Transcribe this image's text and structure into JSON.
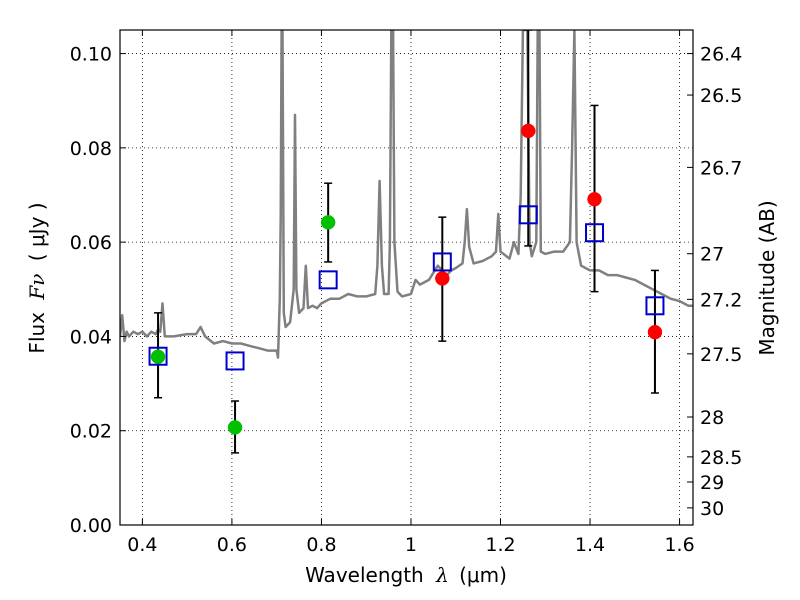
{
  "chart_data": {
    "type": "scatter",
    "xlabel": {
      "prefix": "Wavelength",
      "symbol": "λ",
      "unit": "(μm)"
    },
    "ylabel": {
      "prefix": "Flux",
      "symbol": "Fν",
      "unit": "( μJy )"
    },
    "y2label": "Magnitude (AB)",
    "xlim": [
      0.35,
      1.63
    ],
    "ylim": [
      0.0,
      0.105
    ],
    "grid": true,
    "x_ticks": [
      {
        "value": 0.4,
        "label": "0.4"
      },
      {
        "value": 0.6,
        "label": "0.6"
      },
      {
        "value": 0.8,
        "label": "0.8"
      },
      {
        "value": 1.0,
        "label": "1"
      },
      {
        "value": 1.2,
        "label": "1.2"
      },
      {
        "value": 1.4,
        "label": "1.4"
      },
      {
        "value": 1.6,
        "label": "1.6"
      }
    ],
    "y_ticks": [
      {
        "value": 0.0,
        "label": "0.00"
      },
      {
        "value": 0.02,
        "label": "0.02"
      },
      {
        "value": 0.04,
        "label": "0.04"
      },
      {
        "value": 0.06,
        "label": "0.06"
      },
      {
        "value": 0.08,
        "label": "0.08"
      },
      {
        "value": 0.1,
        "label": "0.10"
      }
    ],
    "y2_ticks": [
      {
        "value": 26.4,
        "label": "26.4"
      },
      {
        "value": 26.5,
        "label": "26.5"
      },
      {
        "value": 26.7,
        "label": "26.7"
      },
      {
        "value": 27.0,
        "label": "27"
      },
      {
        "value": 27.2,
        "label": "27.2"
      },
      {
        "value": 27.5,
        "label": "27.5"
      },
      {
        "value": 28.0,
        "label": "28"
      },
      {
        "value": 28.5,
        "label": "28.5"
      },
      {
        "value": 29.0,
        "label": "29"
      },
      {
        "value": 30.0,
        "label": "30"
      }
    ],
    "model_spectrum": {
      "color": "#808080",
      "points": [
        [
          0.35,
          0.04
        ],
        [
          0.355,
          0.0445
        ],
        [
          0.36,
          0.039
        ],
        [
          0.365,
          0.041
        ],
        [
          0.37,
          0.04
        ],
        [
          0.38,
          0.041
        ],
        [
          0.39,
          0.0405
        ],
        [
          0.4,
          0.041
        ],
        [
          0.41,
          0.04
        ],
        [
          0.42,
          0.041
        ],
        [
          0.43,
          0.0405
        ],
        [
          0.435,
          0.0415
        ],
        [
          0.44,
          0.041
        ],
        [
          0.445,
          0.047
        ],
        [
          0.45,
          0.04
        ],
        [
          0.47,
          0.04
        ],
        [
          0.5,
          0.0405
        ],
        [
          0.52,
          0.0405
        ],
        [
          0.53,
          0.042
        ],
        [
          0.54,
          0.04
        ],
        [
          0.56,
          0.0385
        ],
        [
          0.58,
          0.039
        ],
        [
          0.6,
          0.0385
        ],
        [
          0.62,
          0.0385
        ],
        [
          0.64,
          0.038
        ],
        [
          0.66,
          0.0375
        ],
        [
          0.68,
          0.037
        ],
        [
          0.7,
          0.037
        ],
        [
          0.703,
          0.0355
        ],
        [
          0.707,
          0.048
        ],
        [
          0.709,
          0.065
        ],
        [
          0.711,
          0.105
        ],
        [
          0.713,
          0.105
        ],
        [
          0.716,
          0.045
        ],
        [
          0.72,
          0.042
        ],
        [
          0.73,
          0.043
        ],
        [
          0.738,
          0.05
        ],
        [
          0.741,
          0.087
        ],
        [
          0.744,
          0.05
        ],
        [
          0.75,
          0.045
        ],
        [
          0.76,
          0.046
        ],
        [
          0.765,
          0.055
        ],
        [
          0.77,
          0.046
        ],
        [
          0.78,
          0.0465
        ],
        [
          0.79,
          0.046
        ],
        [
          0.8,
          0.047
        ],
        [
          0.82,
          0.048
        ],
        [
          0.84,
          0.048
        ],
        [
          0.86,
          0.049
        ],
        [
          0.88,
          0.0485
        ],
        [
          0.9,
          0.0485
        ],
        [
          0.92,
          0.049
        ],
        [
          0.925,
          0.055
        ],
        [
          0.93,
          0.073
        ],
        [
          0.935,
          0.055
        ],
        [
          0.94,
          0.049
        ],
        [
          0.95,
          0.049
        ],
        [
          0.953,
          0.06
        ],
        [
          0.956,
          0.105
        ],
        [
          0.96,
          0.105
        ],
        [
          0.963,
          0.06
        ],
        [
          0.97,
          0.0495
        ],
        [
          0.98,
          0.0485
        ],
        [
          1.0,
          0.049
        ],
        [
          1.01,
          0.052
        ],
        [
          1.02,
          0.051
        ],
        [
          1.04,
          0.052
        ],
        [
          1.06,
          0.055
        ],
        [
          1.08,
          0.053
        ],
        [
          1.09,
          0.054
        ],
        [
          1.1,
          0.0545
        ],
        [
          1.115,
          0.0555
        ],
        [
          1.12,
          0.06
        ],
        [
          1.125,
          0.067
        ],
        [
          1.13,
          0.059
        ],
        [
          1.14,
          0.0555
        ],
        [
          1.16,
          0.056
        ],
        [
          1.18,
          0.057
        ],
        [
          1.19,
          0.058
        ],
        [
          1.195,
          0.066
        ],
        [
          1.2,
          0.058
        ],
        [
          1.22,
          0.0565
        ],
        [
          1.23,
          0.06
        ],
        [
          1.24,
          0.0575
        ],
        [
          1.245,
          0.07
        ],
        [
          1.25,
          0.105
        ],
        [
          1.26,
          0.105
        ],
        [
          1.265,
          0.06
        ],
        [
          1.27,
          0.057
        ],
        [
          1.28,
          0.06
        ],
        [
          1.283,
          0.105
        ],
        [
          1.287,
          0.105
        ],
        [
          1.29,
          0.058
        ],
        [
          1.3,
          0.0575
        ],
        [
          1.32,
          0.058
        ],
        [
          1.34,
          0.058
        ],
        [
          1.355,
          0.06
        ],
        [
          1.36,
          0.08
        ],
        [
          1.365,
          0.105
        ],
        [
          1.37,
          0.06
        ],
        [
          1.38,
          0.055
        ],
        [
          1.4,
          0.054
        ],
        [
          1.42,
          0.054
        ],
        [
          1.44,
          0.053
        ],
        [
          1.46,
          0.053
        ],
        [
          1.48,
          0.0525
        ],
        [
          1.5,
          0.052
        ],
        [
          1.52,
          0.051
        ],
        [
          1.54,
          0.05
        ],
        [
          1.56,
          0.049
        ],
        [
          1.58,
          0.048
        ],
        [
          1.6,
          0.0475
        ],
        [
          1.62,
          0.0465
        ],
        [
          1.63,
          0.0465
        ]
      ]
    },
    "series": [
      {
        "marker": "circle",
        "color": "#00c000",
        "points": [
          {
            "x": 0.435,
            "y": 0.0357,
            "err_low": 0.027,
            "err_high": 0.045
          },
          {
            "x": 0.607,
            "y": 0.0207,
            "err_low": 0.0153,
            "err_high": 0.0263
          },
          {
            "x": 0.815,
            "y": 0.0642,
            "err_low": 0.0558,
            "err_high": 0.0725
          }
        ]
      },
      {
        "marker": "circle",
        "color": "#ff0000",
        "points": [
          {
            "x": 1.07,
            "y": 0.0523,
            "err_low": 0.039,
            "err_high": 0.0653
          },
          {
            "x": 1.262,
            "y": 0.0836,
            "err_low": 0.0592,
            "err_high": 0.105
          },
          {
            "x": 1.41,
            "y": 0.0691,
            "err_low": 0.0495,
            "err_high": 0.089
          },
          {
            "x": 1.545,
            "y": 0.0409,
            "err_low": 0.028,
            "err_high": 0.054
          }
        ]
      },
      {
        "marker": "open-square",
        "color": "#0000cc",
        "points": [
          {
            "x": 0.435,
            "y": 0.0358
          },
          {
            "x": 0.607,
            "y": 0.0348
          },
          {
            "x": 0.815,
            "y": 0.052
          },
          {
            "x": 1.07,
            "y": 0.0558
          },
          {
            "x": 1.262,
            "y": 0.0658
          },
          {
            "x": 1.41,
            "y": 0.062
          },
          {
            "x": 1.545,
            "y": 0.0465
          }
        ]
      }
    ]
  }
}
